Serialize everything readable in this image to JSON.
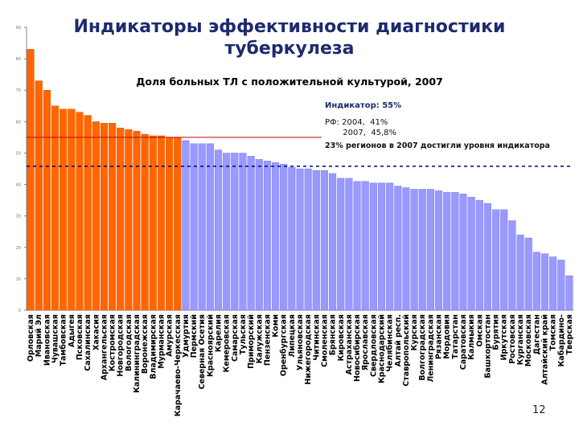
{
  "slide": {
    "title": "Индикаторы эффективности диагностики туберкулеза",
    "page_number": "12"
  },
  "annotations": {
    "indicator": "Индикатор: 55%",
    "rf_line": "РФ: 2004,  41%\n       2007,  45,8%",
    "regions_note": "23% регионов в 2007 достигли уровня индикатора"
  },
  "colors": {
    "above_indicator": "#ff6600",
    "below_indicator": "#9999ff",
    "indicator_line": "#cc0000",
    "rf_line": "#000080",
    "axis": "#808080"
  },
  "chart_data": {
    "type": "bar",
    "title": "Доля больных ТЛ с положительной культурой, 2007",
    "xlabel": "",
    "ylabel": "",
    "ylim": [
      0,
      90
    ],
    "yticks": [
      "0",
      "10",
      "20",
      "30",
      "40",
      "50",
      "60",
      "70",
      "80",
      "90"
    ],
    "indicator_value": 55,
    "rf_average": 45.8,
    "categories": [
      "Орловская",
      "Марий Эл",
      "Ивановская",
      "Чувашская",
      "Тамбовская",
      "Адыгея",
      "Псковская",
      "Сахалинская",
      "Хакасия",
      "Архангельская",
      "Костромская",
      "Новгородская",
      "Вологодская",
      "Калининградская",
      "Воронежская",
      "Владимирская",
      "Мурманская",
      "Амурская",
      "Карачаево-Черкесская",
      "Удмуртия",
      "Пермский",
      "Северная Осетия",
      "Красноярский",
      "Карелия",
      "Кемеровская",
      "Самарская",
      "Тульская",
      "Приморский",
      "Калужская",
      "Пензенская",
      "Коми",
      "Оренбургская",
      "Липецкая",
      "Ульяновская",
      "Нижегородская",
      "Читинская",
      "Смоленская",
      "Брянская",
      "Кировская",
      "Астраханская",
      "Новосибирская",
      "Ярославская",
      "Свердловская",
      "Краснодарский",
      "Челябинская",
      "Алтай респ.",
      "Ставропольский",
      "Курская",
      "Волгоградская",
      "Ленинградская",
      "Рязанская",
      "Мордовия",
      "Татарстан",
      "Саратовская",
      "Калмыкия",
      "Омская",
      "Башкортостан",
      "Бурятия",
      "Иркутская",
      "Ростовская",
      "Курганская",
      "Московская",
      "Дагестан",
      "Алтайский край",
      "Томская",
      "Кабардино-",
      "Тверская"
    ],
    "values": [
      83,
      73,
      70,
      65,
      64,
      64,
      63,
      62,
      60,
      59.5,
      59.5,
      58,
      57.5,
      57,
      56,
      55.5,
      55.5,
      55,
      55,
      54,
      53,
      53,
      53,
      51,
      50,
      50,
      50,
      49,
      48,
      47.5,
      47,
      46.5,
      45.5,
      45,
      45,
      44.5,
      44.5,
      43.5,
      42,
      42,
      41,
      41,
      40.5,
      40.5,
      40.5,
      39.5,
      39,
      38.5,
      38.5,
      38.5,
      38,
      37.5,
      37.5,
      37,
      36,
      35,
      34,
      32,
      32,
      28.5,
      24,
      23,
      18.5,
      18,
      17,
      16,
      11
    ]
  }
}
